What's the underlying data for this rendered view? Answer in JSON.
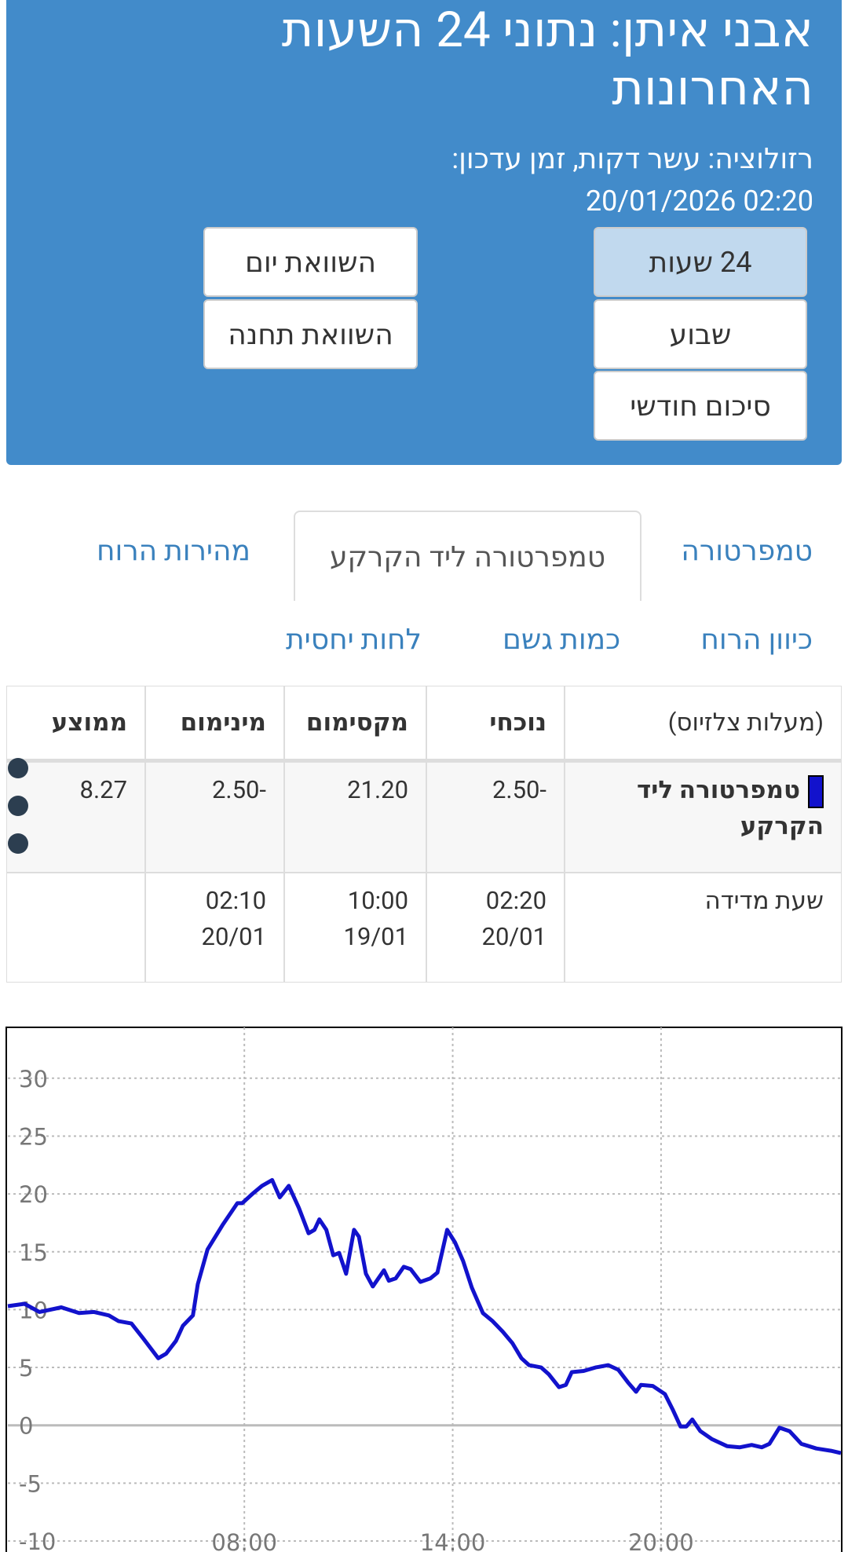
{
  "header": {
    "title": "אבני איתן: נתוני 24 השעות האחרונות",
    "subtitle": "רזולוציה: עשר דקות, זמן עדכון:",
    "updated": "20/01/2026 02:20"
  },
  "buttons": [
    "24 שעות",
    "שבוע",
    "סיכום חודשי",
    "השוואת יום",
    "השוואת תחנה"
  ],
  "tabs": [
    "טמפרטורה",
    "טמפרטורה ליד הקרקע",
    "מהירות הרוח"
  ],
  "links": [
    "כיוון הרוח",
    "כמות גשם",
    "לחות יחסית"
  ],
  "table": {
    "header": [
      "(מעלות צלזיוס)",
      "נוכחי",
      "מקסימום",
      "מינימום",
      "ממוצע"
    ],
    "rows": [
      [
        "טמפרטורה ליד הקרקע",
        "-2.50",
        "21.20",
        "-2.50",
        "8.27"
      ],
      [
        "שעת מדידה",
        "02:20 20/01",
        "10:00 19/01",
        "02:10 20/01",
        ""
      ]
    ]
  },
  "chart_data": {
    "type": "line",
    "xlim": [
      1.19,
      25.18
    ],
    "ylim": [
      -10.95,
      34.4
    ],
    "xticks": [
      {
        "value": 8,
        "label": "08:00"
      },
      {
        "value": 14,
        "label": "14:00"
      },
      {
        "value": 20,
        "label": "20:00"
      }
    ],
    "yticks": [
      -10,
      -5,
      0,
      5,
      10,
      15,
      20,
      25,
      30
    ],
    "grid": true,
    "x": [
      1.19,
      1.67,
      2.1,
      2.73,
      3.24,
      3.67,
      4.1,
      4.38,
      4.75,
      5.09,
      5.52,
      5.75,
      6.03,
      6.23,
      6.52,
      6.66,
      6.94,
      7.37,
      7.8,
      7.94,
      8.23,
      8.51,
      8.8,
      9.02,
      9.28,
      9.57,
      9.85,
      10.02,
      10.16,
      10.36,
      10.56,
      10.73,
      10.93,
      11.16,
      11.3,
      11.5,
      11.7,
      12.02,
      12.16,
      12.36,
      12.59,
      12.79,
      13.07,
      13.36,
      13.56,
      13.84,
      14.07,
      14.3,
      14.55,
      14.87,
      15.15,
      15.44,
      15.72,
      15.98,
      16.2,
      16.55,
      16.77,
      17.06,
      17.26,
      17.43,
      17.77,
      18.11,
      18.48,
      18.77,
      19.05,
      19.28,
      19.42,
      19.76,
      20.11,
      20.33,
      20.56,
      20.73,
      20.9,
      21.13,
      21.47,
      21.9,
      22.27,
      22.61,
      22.9,
      23.12,
      23.41,
      23.7,
      24.04,
      24.47,
      24.89,
      25.18
    ],
    "series": [
      {
        "color": "#1212cc",
        "values": [
          10.3,
          10.5,
          9.8,
          10.2,
          9.7,
          9.8,
          9.5,
          9.0,
          8.8,
          7.5,
          5.8,
          6.2,
          7.3,
          8.6,
          9.5,
          12.2,
          15.2,
          17.3,
          19.2,
          19.2,
          20.0,
          20.7,
          21.2,
          19.7,
          20.7,
          18.8,
          16.6,
          16.9,
          17.8,
          16.9,
          14.7,
          14.9,
          13.1,
          16.9,
          16.3,
          13.1,
          12.0,
          13.4,
          12.5,
          12.7,
          13.7,
          13.5,
          12.4,
          12.7,
          13.2,
          16.9,
          15.8,
          14.2,
          11.9,
          9.7,
          9.0,
          8.1,
          7.1,
          5.8,
          5.2,
          5.0,
          4.4,
          3.3,
          3.5,
          4.6,
          4.7,
          5.0,
          5.2,
          4.8,
          3.7,
          2.9,
          3.5,
          3.4,
          2.7,
          1.4,
          -0.1,
          -0.1,
          0.5,
          -0.5,
          -1.2,
          -1.8,
          -1.9,
          -1.7,
          -1.9,
          -1.6,
          -0.2,
          -0.5,
          -1.6,
          -2.0,
          -2.2,
          -2.4
        ]
      }
    ]
  }
}
